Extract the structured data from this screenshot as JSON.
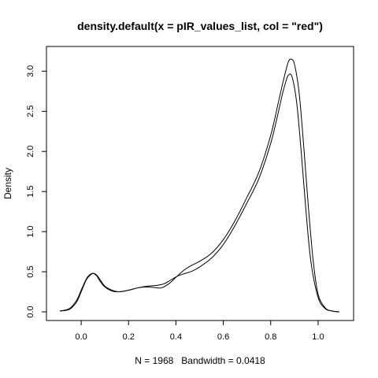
{
  "chart_data": {
    "type": "line",
    "title": "density.default(x = pIR_values_list, col = \"red\")",
    "xlabel": "N = 1968   Bandwidth = 0.0418",
    "ylabel": "Density",
    "xlim": [
      -0.1,
      1.1
    ],
    "ylim": [
      0,
      3.2
    ],
    "x_ticks": [
      0.0,
      0.2,
      0.4,
      0.6,
      0.8,
      1.0
    ],
    "x_tick_labels": [
      "0.0",
      "0.2",
      "0.4",
      "0.6",
      "0.8",
      "1.0"
    ],
    "y_ticks": [
      0.0,
      0.5,
      1.0,
      1.5,
      2.0,
      2.5,
      3.0
    ],
    "y_tick_labels": [
      "0.0",
      "0.5",
      "1.0",
      "1.5",
      "2.0",
      "2.5",
      "3.0"
    ],
    "grid": false,
    "legend": "none",
    "series": [
      {
        "color": "#000000",
        "x": [
          -0.09,
          -0.05,
          -0.02,
          0.0,
          0.02,
          0.035,
          0.05,
          0.065,
          0.08,
          0.1,
          0.13,
          0.16,
          0.2,
          0.24,
          0.28,
          0.32,
          0.34,
          0.37,
          0.4,
          0.43,
          0.46,
          0.5,
          0.55,
          0.6,
          0.65,
          0.7,
          0.75,
          0.8,
          0.83,
          0.85,
          0.865,
          0.875,
          0.885,
          0.9,
          0.92,
          0.94,
          0.96,
          0.98,
          1.0,
          1.03,
          1.06,
          1.09
        ],
        "y": [
          0.01,
          0.04,
          0.14,
          0.27,
          0.4,
          0.46,
          0.48,
          0.45,
          0.38,
          0.31,
          0.26,
          0.25,
          0.27,
          0.3,
          0.31,
          0.3,
          0.3,
          0.35,
          0.43,
          0.51,
          0.57,
          0.63,
          0.73,
          0.9,
          1.14,
          1.43,
          1.74,
          2.2,
          2.58,
          2.84,
          3.02,
          3.12,
          3.15,
          3.09,
          2.73,
          2.04,
          1.27,
          0.62,
          0.22,
          0.05,
          0.01,
          0.0
        ]
      },
      {
        "color": "#000000",
        "x": [
          -0.09,
          -0.05,
          -0.02,
          0.0,
          0.02,
          0.035,
          0.05,
          0.065,
          0.08,
          0.1,
          0.13,
          0.16,
          0.2,
          0.24,
          0.28,
          0.32,
          0.35,
          0.38,
          0.41,
          0.44,
          0.47,
          0.5,
          0.55,
          0.6,
          0.65,
          0.7,
          0.75,
          0.8,
          0.83,
          0.85,
          0.865,
          0.875,
          0.89,
          0.91,
          0.93,
          0.95,
          0.97,
          1.0,
          1.03,
          1.06,
          1.09
        ],
        "y": [
          0.01,
          0.03,
          0.12,
          0.25,
          0.39,
          0.45,
          0.48,
          0.46,
          0.4,
          0.32,
          0.27,
          0.25,
          0.27,
          0.3,
          0.32,
          0.33,
          0.35,
          0.4,
          0.45,
          0.48,
          0.51,
          0.56,
          0.67,
          0.84,
          1.08,
          1.36,
          1.66,
          2.1,
          2.46,
          2.72,
          2.88,
          2.95,
          2.93,
          2.6,
          1.95,
          1.22,
          0.62,
          0.18,
          0.04,
          0.01,
          0.0
        ]
      }
    ]
  }
}
